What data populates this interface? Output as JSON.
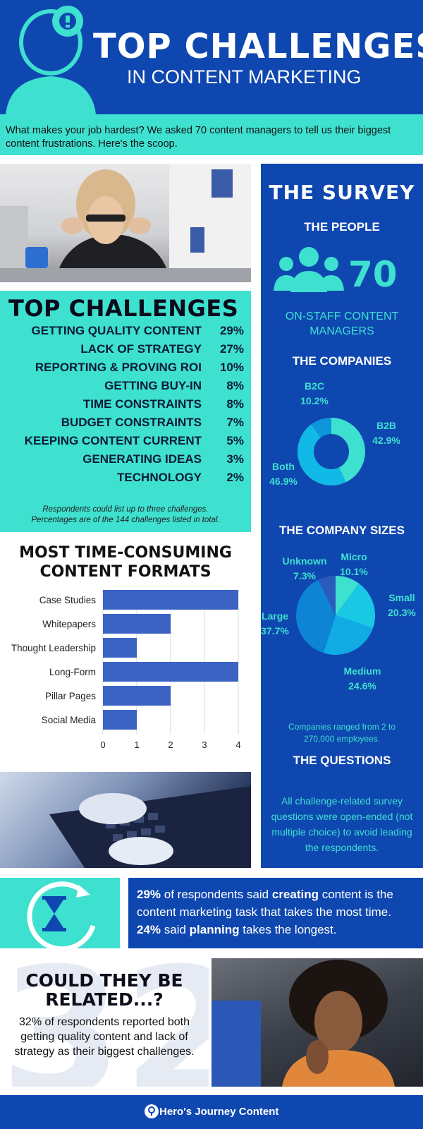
{
  "header": {
    "title": "TOP CHALLENGES",
    "subtitle": "IN CONTENT MARKETING"
  },
  "intro": "What makes your job hardest? We asked 70 content managers to tell us their biggest content frustrations. Here's the scoop.",
  "challenges": {
    "title": "TOP CHALLENGES",
    "items": [
      {
        "label": "GETTING QUALITY CONTENT",
        "pct": "29%"
      },
      {
        "label": "LACK OF STRATEGY",
        "pct": "27%"
      },
      {
        "label": "REPORTING & PROVING ROI",
        "pct": "10%"
      },
      {
        "label": "GETTING BUY-IN",
        "pct": "8%"
      },
      {
        "label": "TIME CONSTRAINTS",
        "pct": "8%"
      },
      {
        "label": "BUDGET CONSTRAINTS",
        "pct": "7%"
      },
      {
        "label": "KEEPING CONTENT CURRENT",
        "pct": "5%"
      },
      {
        "label": "GENERATING IDEAS",
        "pct": "3%"
      },
      {
        "label": "TECHNOLOGY",
        "pct": "2%"
      }
    ],
    "note_line1": "Respondents could list up to three challenges.",
    "note_line2": "Percentages are of the 144 challenges listed in total."
  },
  "formats": {
    "title_line1": "MOST TIME-CONSUMING",
    "title_line2": "CONTENT FORMATS"
  },
  "chart_data": [
    {
      "type": "bar",
      "orientation": "horizontal",
      "title": "MOST TIME-CONSUMING CONTENT FORMATS",
      "categories": [
        "Case Studies",
        "Whitepapers",
        "Thought Leadership",
        "Long-Form",
        "Pillar Pages",
        "Social Media"
      ],
      "values": [
        4,
        2,
        1,
        4,
        2,
        1
      ],
      "xlim": [
        0,
        4
      ],
      "ticks": [
        "0",
        "1",
        "2",
        "3",
        "4"
      ],
      "grid": true,
      "color": "#3b63c4"
    },
    {
      "type": "pie",
      "donut": true,
      "title": "THE COMPANIES",
      "slices": [
        {
          "name": "B2B",
          "value": 42.9,
          "label": "42.9%",
          "color": "#3ee0cf"
        },
        {
          "name": "Both",
          "value": 46.9,
          "label": "46.9%",
          "color": "#11b9e6"
        },
        {
          "name": "B2C",
          "value": 10.2,
          "label": "10.2%",
          "color": "#0d96da"
        }
      ]
    },
    {
      "type": "pie",
      "title": "THE COMPANY SIZES",
      "slices": [
        {
          "name": "Micro",
          "value": 10.1,
          "label": "10.1%",
          "color": "#3ee0cf"
        },
        {
          "name": "Small",
          "value": 20.3,
          "label": "20.3%",
          "color": "#19c8e4"
        },
        {
          "name": "Medium",
          "value": 24.6,
          "label": "24.6%",
          "color": "#10abe3"
        },
        {
          "name": "Large",
          "value": 37.7,
          "label": "37.7%",
          "color": "#0d84d4"
        },
        {
          "name": "Unknown",
          "value": 7.3,
          "label": "7.3%",
          "color": "#2a5bbd"
        }
      ]
    }
  ],
  "survey": {
    "title": "THE SURVEY",
    "people_title": "THE PEOPLE",
    "people_count": "70",
    "people_label_line1": "ON-STAFF CONTENT",
    "people_label_line2": "MANAGERS",
    "companies_title": "THE COMPANIES",
    "sizes_title": "THE COMPANY SIZES",
    "range_line1": "Companies ranged from 2 to",
    "range_line2": "270,000 employees.",
    "questions_title": "THE QUESTIONS",
    "questions_text": "All challenge-related survey questions were open-ended (not multiple choice) to avoid leading the respondents."
  },
  "time_stat": {
    "p1_bold": "29%",
    "p1": " of respondents said ",
    "p2_bold": "creating",
    "p2": " content is the content marketing task that takes the most time. ",
    "p3_bold": "24%",
    "p3": " said ",
    "p4_bold": "planning",
    "p4": " takes the longest."
  },
  "related": {
    "bg_number": "32",
    "title_line1": "COULD THEY BE",
    "title_line2": "RELATED...?",
    "body": "32% of respondents reported both getting quality content and lack of strategy as their biggest challenges."
  },
  "footer": {
    "brand": "Hero's Journey Content"
  },
  "colors": {
    "navy": "#0f47b0",
    "teal": "#3ee0cf",
    "bar": "#3b63c4"
  },
  "icons": [
    "person-gear-icon",
    "people-group-icon",
    "hourglass-icon",
    "brand-logo-icon"
  ]
}
